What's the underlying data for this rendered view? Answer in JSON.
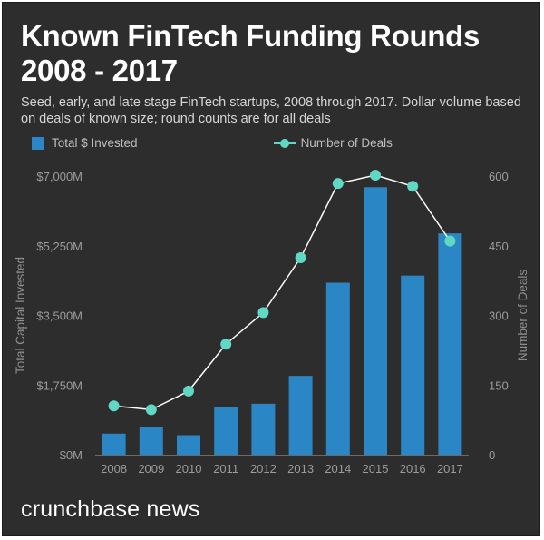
{
  "chart_data": {
    "type": "bar+line",
    "title": "Known FinTech Funding Rounds 2008 - 2017",
    "subtitle": "Seed, early, and late stage FinTech startups, 2008 through 2017. Dollar volume based on deals of known size; round counts are for all deals",
    "categories": [
      "2008",
      "2009",
      "2010",
      "2011",
      "2012",
      "2013",
      "2014",
      "2015",
      "2016",
      "2017"
    ],
    "series": [
      {
        "name": "Total $ Invested",
        "type": "bar",
        "axis": "left",
        "color": "#2b86c5",
        "values": [
          530,
          700,
          490,
          1200,
          1280,
          1980,
          4320,
          6720,
          4500,
          5560
        ]
      },
      {
        "name": "Number of Deals",
        "type": "line",
        "axis": "right",
        "color": "#5fd8c4",
        "values": [
          105,
          97,
          137,
          238,
          306,
          424,
          584,
          602,
          578,
          460
        ]
      }
    ],
    "y_left": {
      "label": "Total Capital Invested",
      "range": [
        0,
        7000
      ],
      "ticks": [
        0,
        1750,
        3500,
        5250,
        7000
      ],
      "tick_labels": [
        "$0M",
        "$1,750M",
        "$3,500M",
        "$5,250M",
        "$7,000M"
      ]
    },
    "y_right": {
      "label": "Number of Deals",
      "range": [
        0,
        600
      ],
      "ticks": [
        0,
        150,
        300,
        450,
        600
      ],
      "tick_labels": [
        "0",
        "150",
        "300",
        "450",
        "600"
      ]
    },
    "legend": "top-left",
    "grid": false
  },
  "brand": "crunchbase news"
}
